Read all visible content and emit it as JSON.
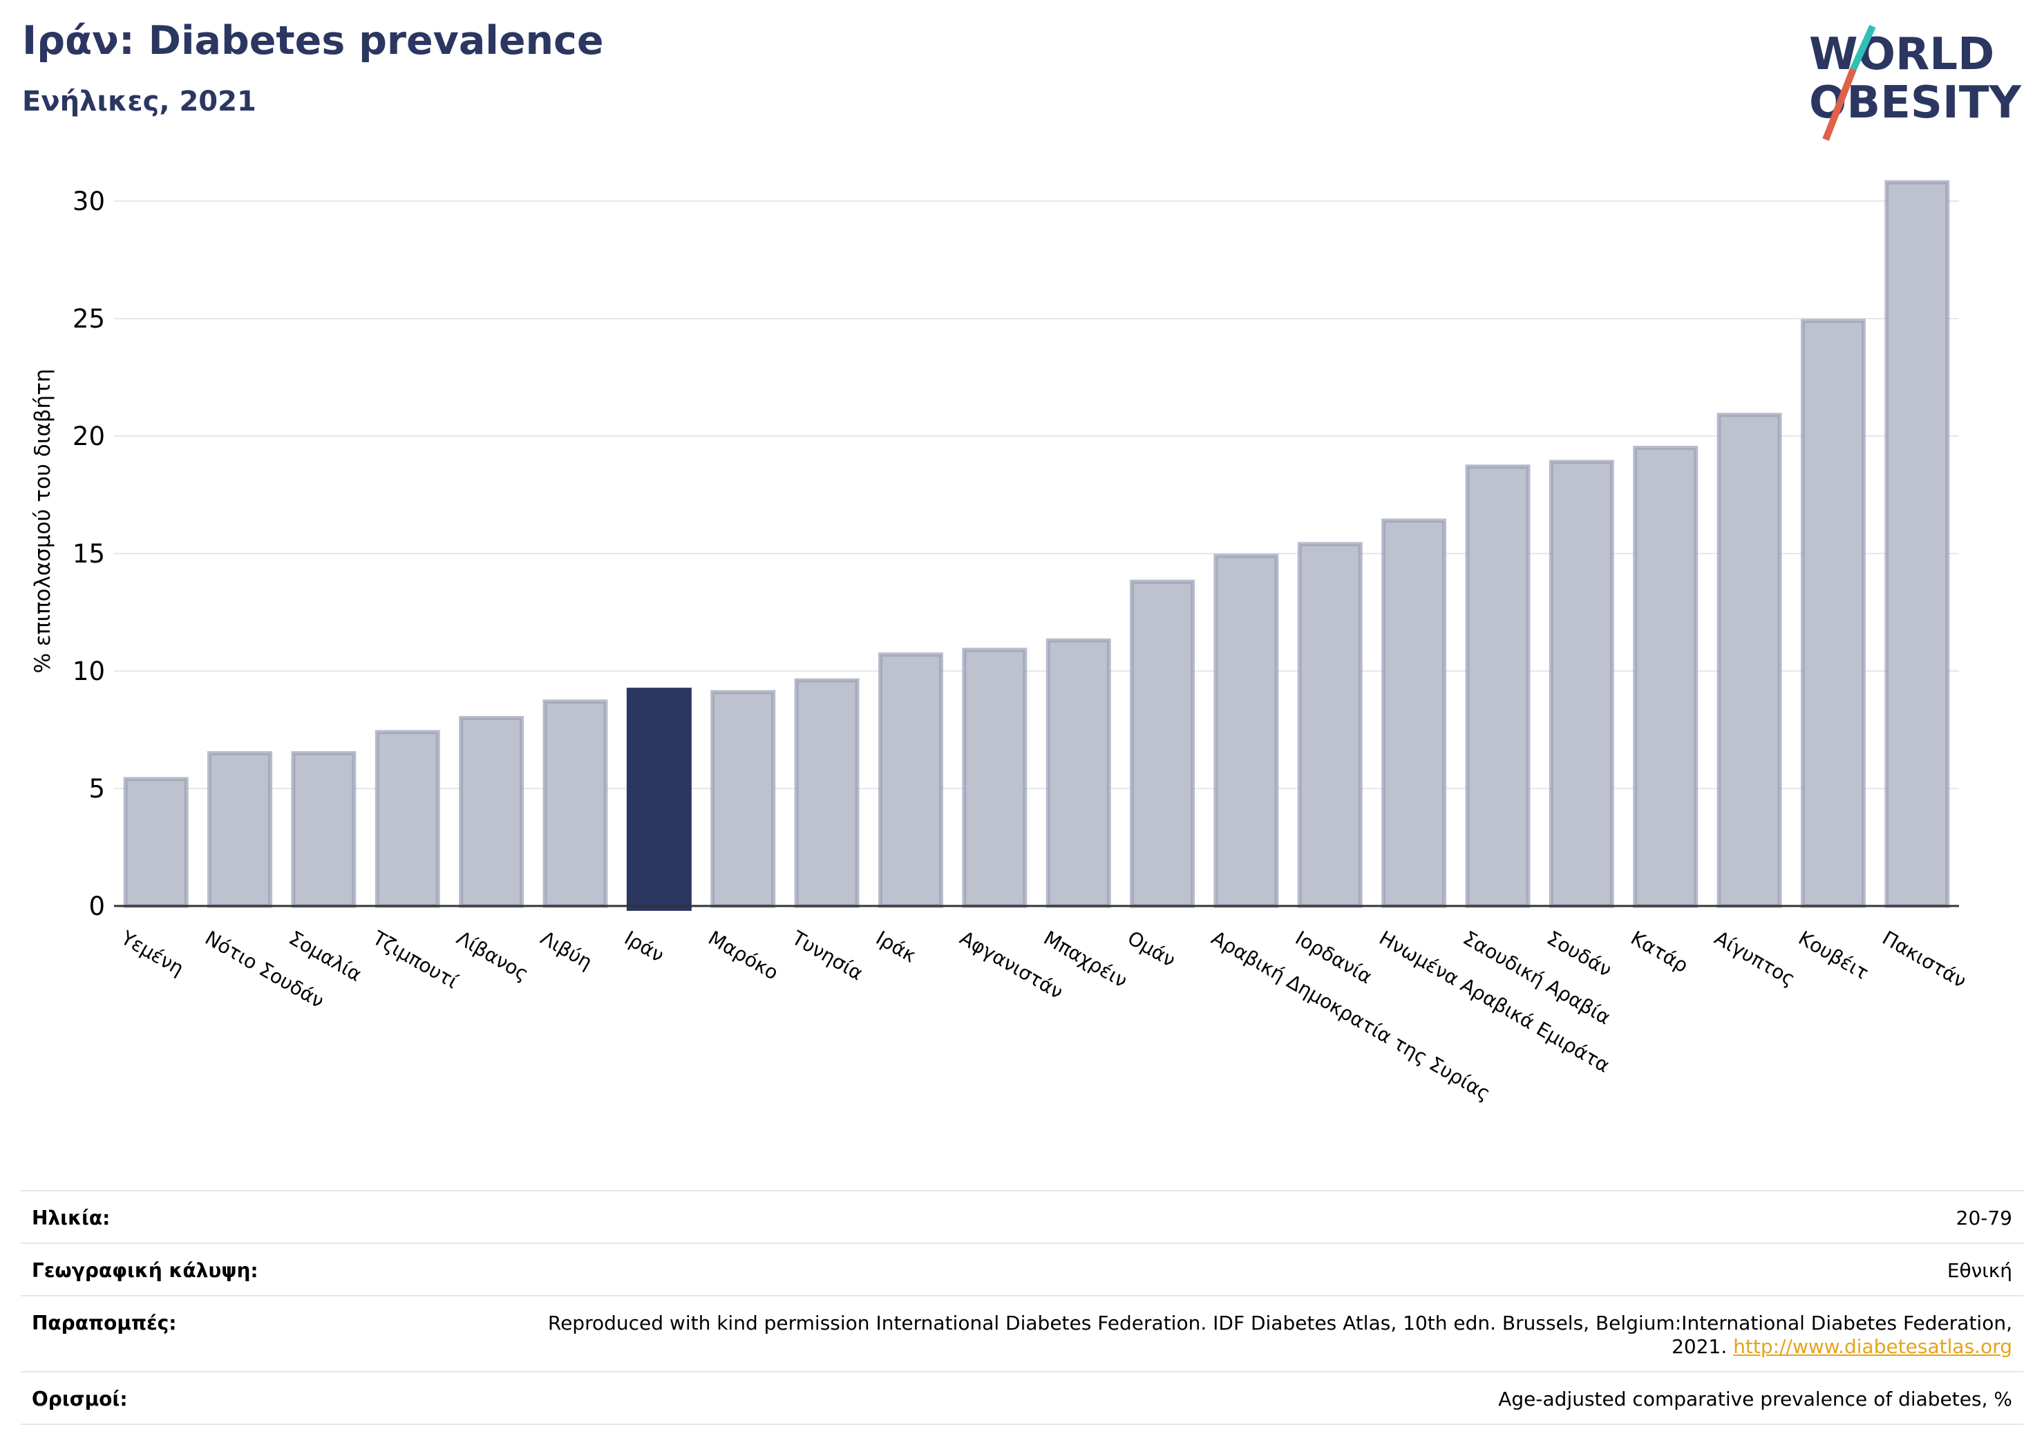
{
  "header": {
    "title": "Ιράν: Diabetes prevalence",
    "subtitle": "Ενήλικες, 2021"
  },
  "logo": {
    "line1": "WORLD",
    "line2": "OBESITY",
    "text_color": "#2b3661",
    "slash_colors": [
      "#2fbfb5",
      "#e0604a"
    ]
  },
  "chart_data": {
    "type": "bar",
    "ylabel": "% επιπολασμού του διαβήτη",
    "ylim": [
      0,
      32
    ],
    "yticks": [
      0,
      5,
      10,
      15,
      20,
      25,
      30
    ],
    "grid": true,
    "highlight": "Ιράν",
    "colors": {
      "bar": "#bec1ce",
      "bar_edge": "#9a9fb5",
      "highlight": "#2b3661",
      "axis": "#333333",
      "grid": "#e6e7ec"
    },
    "categories": [
      "Υεμένη",
      "Νότιο Σουδάν",
      "Σομαλία",
      "Τζιμπουτί",
      "Λίβανος",
      "Λιβύη",
      "Ιράν",
      "Μαρόκο",
      "Τυνησία",
      "Ιράκ",
      "Αφγανιστάν",
      "Μπαχρέιν",
      "Ομάν",
      "Αραβική Δημοκρατία της Συρίας",
      "Ιορδανία",
      "Ηνωμένα Αραβικά Εμιράτα",
      "Σαουδική Αραβία",
      "Σουδάν",
      "Κατάρ",
      "Αίγυπτος",
      "Κουβέιτ",
      "Πακιστάν"
    ],
    "values": [
      5.4,
      6.5,
      6.5,
      7.4,
      8.0,
      8.7,
      9.2,
      9.1,
      9.6,
      10.7,
      10.9,
      11.3,
      13.8,
      14.9,
      15.4,
      16.4,
      18.7,
      18.9,
      19.5,
      20.9,
      24.9,
      30.8
    ]
  },
  "meta": {
    "rows": [
      {
        "label": "Ηλικία:",
        "value": "20-79"
      },
      {
        "label": "Γεωγραφική κάλυψη:",
        "value": "Εθνική"
      },
      {
        "label": "Παραπομπές:",
        "value": "Reproduced with kind permission International Diabetes Federation.  IDF Diabetes Atlas, 10th edn. Brussels, Belgium:International Diabetes Federation, 2021.",
        "link": "http://www.diabetesatlas.org"
      },
      {
        "label": "Ορισμοί:",
        "value": "Age-adjusted comparative prevalence of diabetes, %"
      }
    ]
  }
}
